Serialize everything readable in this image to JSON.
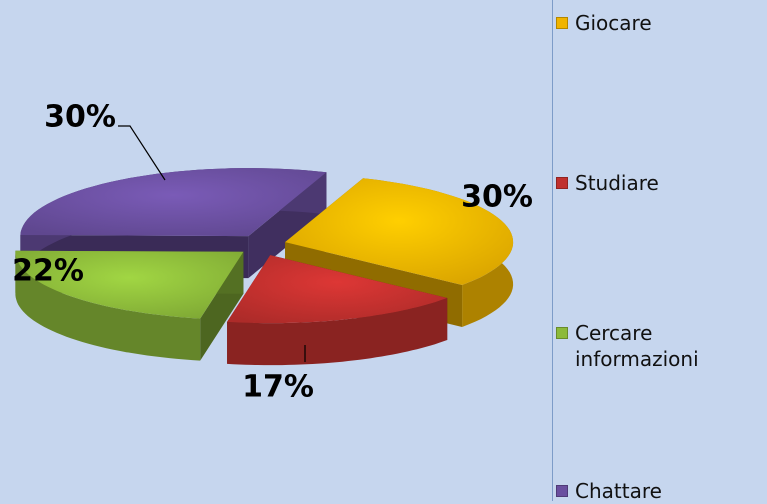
{
  "chart_data": {
    "type": "pie",
    "categories": [
      "Giocare",
      "Studiare",
      "Cercare informazioni",
      "Chattare"
    ],
    "values": [
      30,
      17,
      22,
      30
    ],
    "value_labels": [
      "30%",
      "17%",
      "22%",
      "30%"
    ],
    "colors": [
      "#f0b400",
      "#c0302e",
      "#8cba3a",
      "#6a4f9f"
    ],
    "legend": "right"
  }
}
